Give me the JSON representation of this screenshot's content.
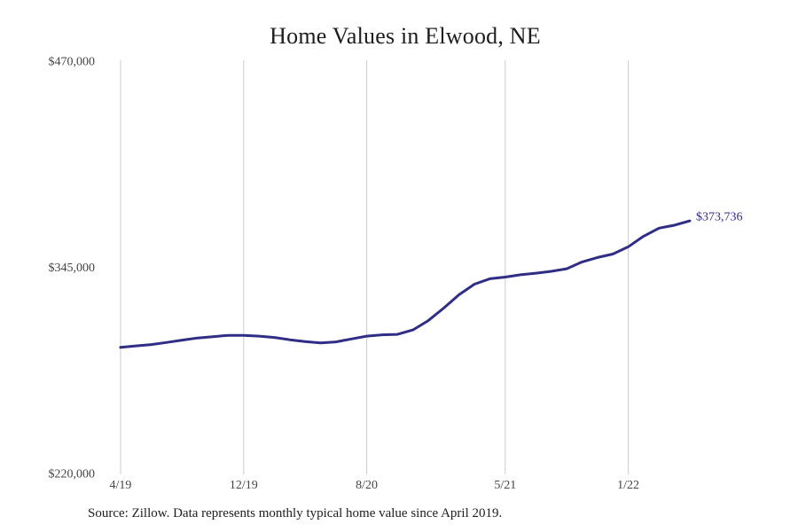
{
  "title": "Home Values in Elwood, NE",
  "source_note": "Source: Zillow. Data represents monthly typical home value since April 2019.",
  "chart_data": {
    "type": "line",
    "title": "Home Values in Elwood, NE",
    "series_name": "Typical home value",
    "x": [
      "4/19",
      "5/19",
      "6/19",
      "7/19",
      "8/19",
      "9/19",
      "10/19",
      "11/19",
      "12/19",
      "1/20",
      "2/20",
      "3/20",
      "4/20",
      "5/20",
      "6/20",
      "7/20",
      "8/20",
      "9/20",
      "10/20",
      "11/20",
      "12/20",
      "1/21",
      "2/21",
      "3/21",
      "4/21",
      "5/21",
      "6/21",
      "7/21",
      "8/21",
      "9/21",
      "10/21",
      "11/21",
      "12/21",
      "1/22",
      "2/22",
      "3/22",
      "4/22",
      "5/22"
    ],
    "values": [
      297000,
      297900,
      298700,
      300000,
      301400,
      302700,
      303500,
      304300,
      304300,
      303800,
      303000,
      301600,
      300500,
      299700,
      300300,
      302100,
      303800,
      304600,
      304900,
      307600,
      313200,
      320800,
      328900,
      335300,
      338600,
      339600,
      341000,
      342000,
      343100,
      344700,
      348800,
      351500,
      353600,
      358000,
      364400,
      369300,
      371100,
      373736
    ],
    "xlabel": "",
    "ylabel": "",
    "ylim": [
      220000,
      470000
    ],
    "y_ticks": [
      {
        "value": 470000,
        "label": "$470,000"
      },
      {
        "value": 345000,
        "label": "$345,000"
      },
      {
        "value": 220000,
        "label": "$220,000"
      }
    ],
    "x_ticks": [
      {
        "index": 0,
        "label": "4/19"
      },
      {
        "index": 8,
        "label": "12/19"
      },
      {
        "index": 16,
        "label": "8/20"
      },
      {
        "index": 25,
        "label": "5/21"
      },
      {
        "index": 33,
        "label": "1/22"
      }
    ],
    "end_label": "$373,736",
    "grid": "vertical-only",
    "legend": "none",
    "colors": {
      "line": "#302d86",
      "grid": "#cbcbcb",
      "tick_text": "#454545",
      "title_text": "#1d1d1d"
    }
  }
}
